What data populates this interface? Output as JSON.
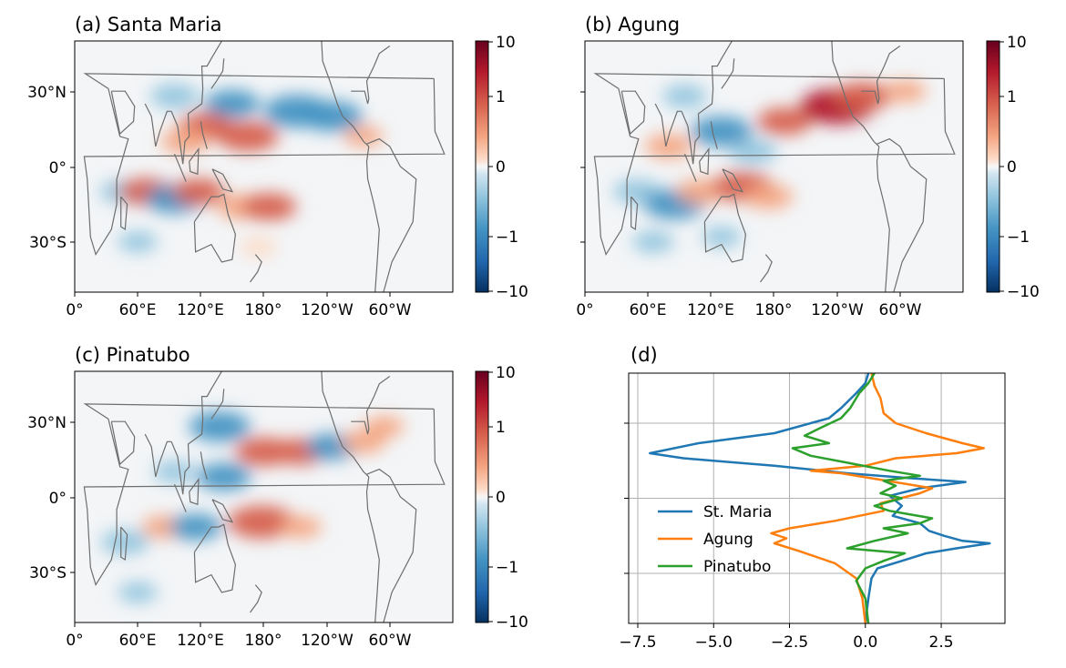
{
  "chart_data": [
    {
      "type": "heatmap",
      "title": "(a) Santa Maria",
      "x_ticks": [
        "0°",
        "60°E",
        "120°E",
        "180°",
        "120°W",
        "60°W"
      ],
      "y_ticks": [
        "30°N",
        "0°",
        "30°S"
      ],
      "colorbar_ticks": [
        "10",
        "1",
        "0",
        "−1",
        "−10"
      ],
      "colormap": "RdBu_r",
      "colorbar_scale": "symlog",
      "colorbar_range": [
        -10,
        10
      ],
      "anomalies": [
        {
          "lon": 95,
          "lat": 28,
          "value": -1.5
        },
        {
          "lon": 150,
          "lat": 25,
          "value": -2.0
        },
        {
          "lon": 212,
          "lat": 22,
          "value": -3.0
        },
        {
          "lon": 245,
          "lat": 20,
          "value": -2.5
        },
        {
          "lon": 125,
          "lat": 16,
          "value": 2.0
        },
        {
          "lon": 165,
          "lat": 12,
          "value": 2.5
        },
        {
          "lon": 105,
          "lat": 10,
          "value": 1.5
        },
        {
          "lon": 275,
          "lat": 12,
          "value": 0.8
        },
        {
          "lon": 45,
          "lat": -10,
          "value": -1.2
        },
        {
          "lon": 68,
          "lat": -10,
          "value": 2.0
        },
        {
          "lon": 95,
          "lat": -13,
          "value": -2.2
        },
        {
          "lon": 118,
          "lat": -10,
          "value": 1.8
        },
        {
          "lon": 158,
          "lat": -16,
          "value": 1.5
        },
        {
          "lon": 185,
          "lat": -16,
          "value": 2.0
        },
        {
          "lon": 60,
          "lat": -30,
          "value": -0.8
        },
        {
          "lon": 175,
          "lat": -32,
          "value": 0.6
        }
      ]
    },
    {
      "type": "heatmap",
      "title": "(b) Agung",
      "x_ticks": [
        "0°",
        "60°E",
        "120°E",
        "180°",
        "120°W",
        "60°W"
      ],
      "y_ticks": [
        "30°N",
        "0°",
        "30°S"
      ],
      "colorbar_ticks": [
        "10",
        "1",
        "0",
        "−1",
        "−10"
      ],
      "colormap": "RdBu_r",
      "colorbar_scale": "symlog",
      "colorbar_range": [
        -10,
        10
      ],
      "anomalies": [
        {
          "lon": 95,
          "lat": 28,
          "value": -1.2
        },
        {
          "lon": 130,
          "lat": 14,
          "value": -2.5
        },
        {
          "lon": 160,
          "lat": 6,
          "value": -1.5
        },
        {
          "lon": 190,
          "lat": 18,
          "value": 2.0
        },
        {
          "lon": 240,
          "lat": 24,
          "value": 3.5
        },
        {
          "lon": 265,
          "lat": 28,
          "value": 2.2
        },
        {
          "lon": 305,
          "lat": 30,
          "value": 1.0
        },
        {
          "lon": 80,
          "lat": 8,
          "value": 1.5
        },
        {
          "lon": 50,
          "lat": -10,
          "value": -1.5
        },
        {
          "lon": 85,
          "lat": -15,
          "value": -2.5
        },
        {
          "lon": 110,
          "lat": -10,
          "value": 1.5
        },
        {
          "lon": 150,
          "lat": -8,
          "value": 2.5
        },
        {
          "lon": 175,
          "lat": -12,
          "value": 1.5
        },
        {
          "lon": 65,
          "lat": -30,
          "value": -1.0
        },
        {
          "lon": 130,
          "lat": -28,
          "value": -0.8
        }
      ]
    },
    {
      "type": "heatmap",
      "title": "(c) Pinatubo",
      "x_ticks": [
        "0°",
        "60°E",
        "120°E",
        "180°",
        "120°W",
        "60°W"
      ],
      "y_ticks": [
        "30°N",
        "0°",
        "30°S"
      ],
      "colorbar_ticks": [
        "10",
        "1",
        "0",
        "−1",
        "−10"
      ],
      "colormap": "RdBu_r",
      "colorbar_scale": "symlog",
      "colorbar_range": [
        -10,
        10
      ],
      "anomalies": [
        {
          "lon": 138,
          "lat": 28,
          "value": -2.5
        },
        {
          "lon": 142,
          "lat": 8,
          "value": -2.0
        },
        {
          "lon": 180,
          "lat": 18,
          "value": 2.2
        },
        {
          "lon": 215,
          "lat": 18,
          "value": 1.8
        },
        {
          "lon": 245,
          "lat": 20,
          "value": -1.8
        },
        {
          "lon": 275,
          "lat": 22,
          "value": 1.2
        },
        {
          "lon": 295,
          "lat": 28,
          "value": 0.8
        },
        {
          "lon": 95,
          "lat": 10,
          "value": -1.0
        },
        {
          "lon": 48,
          "lat": -18,
          "value": -1.5
        },
        {
          "lon": 85,
          "lat": -12,
          "value": 1.2
        },
        {
          "lon": 115,
          "lat": -12,
          "value": -1.8
        },
        {
          "lon": 178,
          "lat": -10,
          "value": 3.0
        },
        {
          "lon": 215,
          "lat": -12,
          "value": 1.0
        },
        {
          "lon": 60,
          "lat": -38,
          "value": -0.8
        }
      ]
    },
    {
      "type": "line",
      "title": "(d)",
      "orientation": "horizontal-profile",
      "xlim": [
        -7.8,
        4.6
      ],
      "x_ticks": [
        "−7.5",
        "−5.0",
        "−2.5",
        "0.0",
        "2.5"
      ],
      "x_tick_values": [
        -7.5,
        -5.0,
        -2.5,
        0.0,
        2.5
      ],
      "ylim": [
        -50,
        50
      ],
      "y_tick_values": [
        30,
        0,
        -30
      ],
      "grid": true,
      "legend_position": "center-left",
      "series": [
        {
          "name": "St. Maria",
          "color": "#1f77b4",
          "points": [
            [
              0.1,
              50
            ],
            [
              0.0,
              46
            ],
            [
              -0.3,
              42
            ],
            [
              -0.8,
              36
            ],
            [
              -1.2,
              32
            ],
            [
              -3.0,
              26
            ],
            [
              -5.5,
              22
            ],
            [
              -7.1,
              18
            ],
            [
              -6.0,
              16
            ],
            [
              -3.0,
              13
            ],
            [
              -0.6,
              10
            ],
            [
              1.5,
              8
            ],
            [
              3.3,
              6.5
            ],
            [
              1.8,
              4
            ],
            [
              0.8,
              1
            ],
            [
              1.2,
              -3
            ],
            [
              0.9,
              -7
            ],
            [
              1.8,
              -10
            ],
            [
              2.1,
              -13
            ],
            [
              2.6,
              -15
            ],
            [
              3.2,
              -17
            ],
            [
              4.1,
              -18
            ],
            [
              3.0,
              -20
            ],
            [
              2.0,
              -22
            ],
            [
              1.2,
              -25
            ],
            [
              0.4,
              -28
            ],
            [
              0.2,
              -32
            ],
            [
              0.1,
              -40
            ],
            [
              0.0,
              -50
            ]
          ]
        },
        {
          "name": "Agung",
          "color": "#ff7f0e",
          "points": [
            [
              0.2,
              50
            ],
            [
              0.3,
              45
            ],
            [
              0.5,
              40
            ],
            [
              0.6,
              34
            ],
            [
              1.0,
              30
            ],
            [
              2.0,
              26
            ],
            [
              3.2,
              22
            ],
            [
              3.9,
              20
            ],
            [
              3.0,
              18
            ],
            [
              1.0,
              16
            ],
            [
              0.0,
              13
            ],
            [
              -1.8,
              11
            ],
            [
              -0.8,
              10
            ],
            [
              0.2,
              8
            ],
            [
              2.2,
              4
            ],
            [
              1.8,
              2
            ],
            [
              0.5,
              -2
            ],
            [
              0.6,
              -5
            ],
            [
              -1.0,
              -9
            ],
            [
              -2.5,
              -12
            ],
            [
              -3.1,
              -14
            ],
            [
              -2.6,
              -16
            ],
            [
              -3.0,
              -18
            ],
            [
              -2.2,
              -21
            ],
            [
              -1.0,
              -26
            ],
            [
              -0.3,
              -32
            ],
            [
              -0.1,
              -40
            ],
            [
              0.0,
              -50
            ]
          ]
        },
        {
          "name": "Pinatubo",
          "color": "#2ca02c",
          "points": [
            [
              0.3,
              50
            ],
            [
              0.1,
              46
            ],
            [
              -0.2,
              42
            ],
            [
              -0.5,
              36
            ],
            [
              -0.8,
              32
            ],
            [
              -1.5,
              28
            ],
            [
              -2.0,
              25
            ],
            [
              -1.2,
              22
            ],
            [
              -2.4,
              20
            ],
            [
              -1.8,
              17
            ],
            [
              -0.5,
              14
            ],
            [
              0.8,
              11
            ],
            [
              1.8,
              9
            ],
            [
              0.6,
              7
            ],
            [
              1.0,
              5
            ],
            [
              0.5,
              2
            ],
            [
              1.2,
              0
            ],
            [
              0.3,
              -3
            ],
            [
              0.8,
              -5
            ],
            [
              2.2,
              -8
            ],
            [
              1.8,
              -10
            ],
            [
              0.6,
              -12
            ],
            [
              1.4,
              -14
            ],
            [
              0.3,
              -17
            ],
            [
              -0.6,
              -20
            ],
            [
              1.3,
              -22
            ],
            [
              0.6,
              -25
            ],
            [
              0.0,
              -28
            ],
            [
              -0.3,
              -33
            ],
            [
              0.0,
              -40
            ],
            [
              0.1,
              -50
            ]
          ]
        }
      ]
    }
  ]
}
